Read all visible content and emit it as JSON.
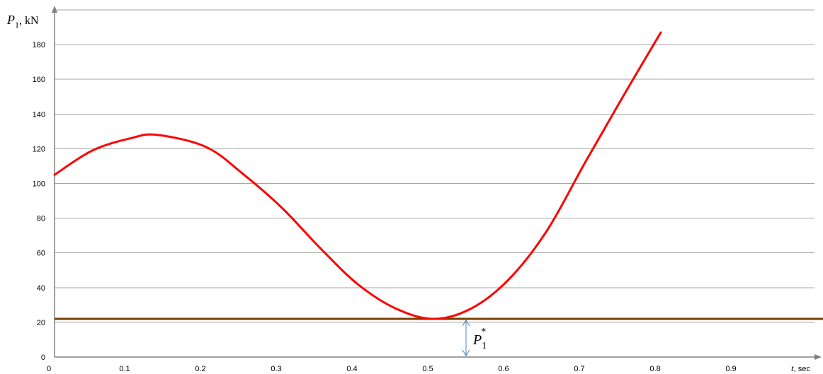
{
  "chart_data": {
    "type": "line",
    "title": "",
    "ylabel": {
      "symbol": "P",
      "subscript": "1",
      "unit": ", kN"
    },
    "xlabel": {
      "symbol": "t",
      "unit": ", sec"
    },
    "xlim": [
      0,
      1
    ],
    "ylim": [
      0,
      200
    ],
    "x_ticks": [
      "0",
      "0.1",
      "0.2",
      "0.3",
      "0.4",
      "0.5",
      "0.6",
      "0.7",
      "0.8",
      "0.9"
    ],
    "y_ticks": [
      "0",
      "20",
      "40",
      "60",
      "80",
      "100",
      "120",
      "140",
      "160",
      "180"
    ],
    "grid": true,
    "series": [
      {
        "color": "#ff0000",
        "x": [
          0,
          0.05,
          0.1,
          0.135,
          0.2,
          0.25,
          0.3,
          0.35,
          0.4,
          0.45,
          0.5,
          0.55,
          0.6,
          0.65,
          0.7,
          0.75,
          0.8
        ],
        "values": [
          105,
          119,
          126,
          128,
          121,
          105,
          86,
          63,
          42,
          28,
          22,
          28,
          45,
          73,
          112,
          150,
          187
        ]
      }
    ],
    "threshold": {
      "value": 22,
      "color": "#7b3f00"
    },
    "annotation": {
      "symbol": "P",
      "subscript": "1",
      "superscript": "*",
      "x": 0.543,
      "from": 0,
      "to": 22,
      "color": "#4f81bd"
    }
  }
}
